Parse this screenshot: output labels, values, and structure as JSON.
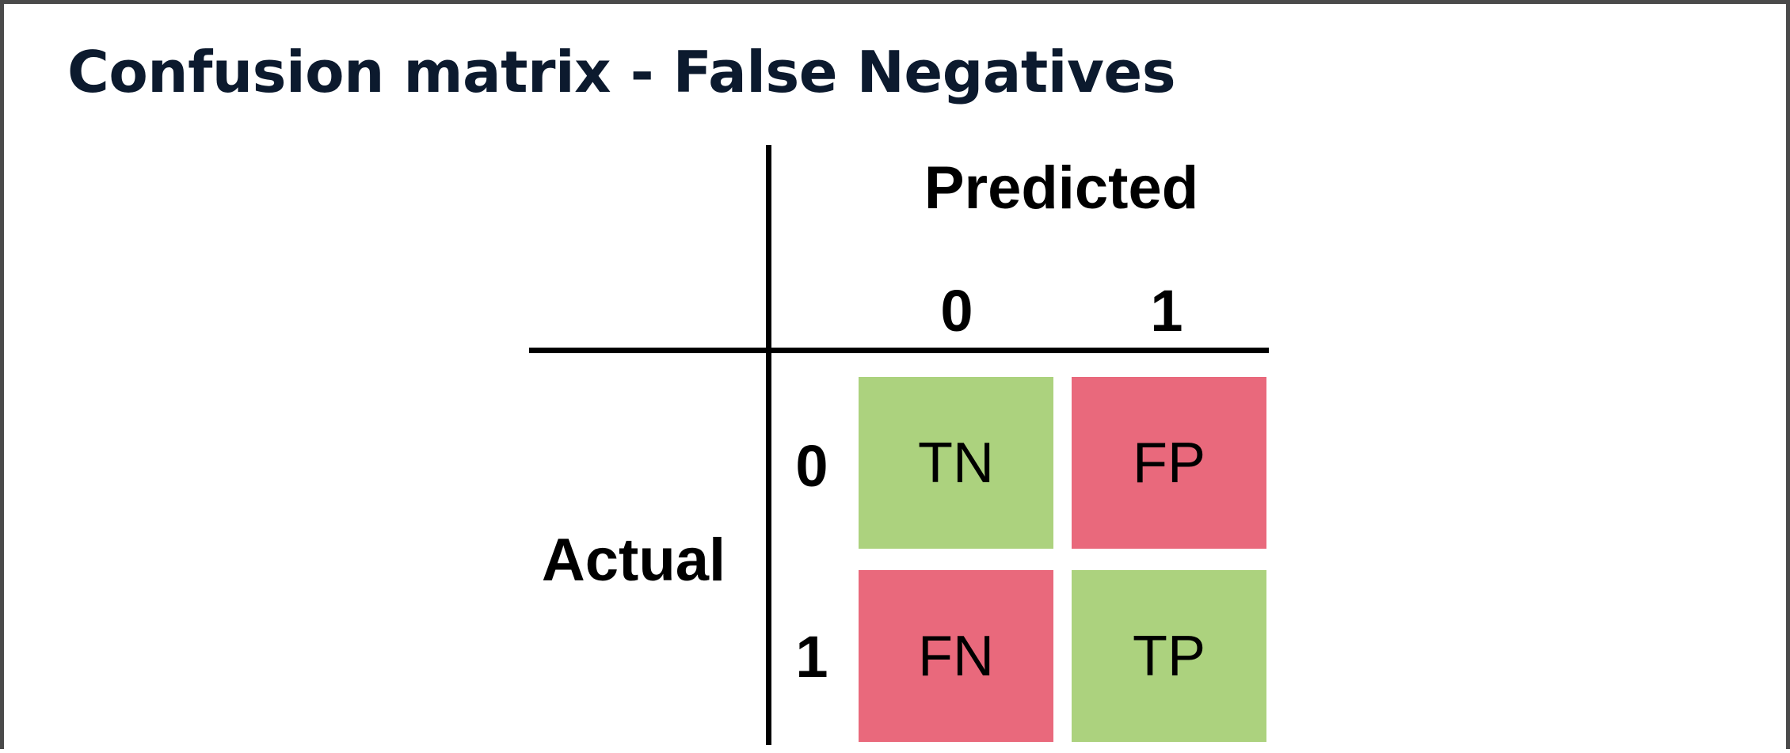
{
  "title": "Confusion matrix - False Negatives",
  "matrix": {
    "predicted_label": "Predicted",
    "actual_label": "Actual",
    "predicted_ticks": [
      "0",
      "1"
    ],
    "actual_ticks": [
      "0",
      "1"
    ],
    "cells": {
      "tn": {
        "text": "TN",
        "color": "#acd27e"
      },
      "fp": {
        "text": "FP",
        "color": "#e9697c"
      },
      "fn": {
        "text": "FN",
        "color": "#e9697c"
      },
      "tp": {
        "text": "TP",
        "color": "#acd27e"
      }
    }
  },
  "colors": {
    "title": "#0c1a2e",
    "border": "#4a4a4a",
    "correct": "#acd27e",
    "incorrect": "#e9697c"
  }
}
